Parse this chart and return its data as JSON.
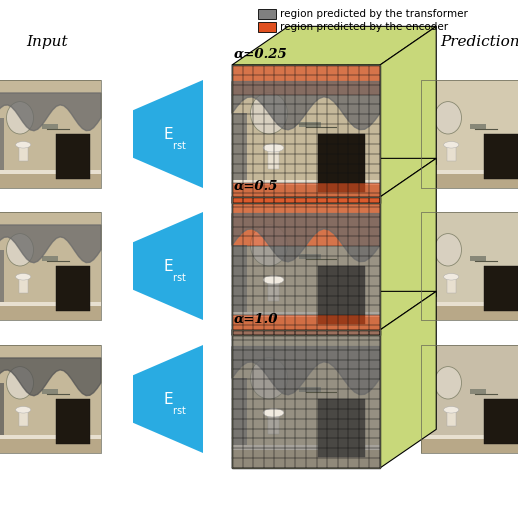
{
  "legend_items": [
    {
      "label": "region predicted by the transformer",
      "color": "#808080"
    },
    {
      "label": "region predicted by the encoder",
      "color": "#E05020"
    }
  ],
  "input_label": "Input",
  "prediction_label": "Prediction",
  "encoder_label": "E",
  "encoder_sub": "rst",
  "box_green": "#C8D87A",
  "arrow_blue": "#29ABE2",
  "transformer_color": "#808080",
  "encoder_color": "#E05020",
  "background": "#FFFFFF",
  "alphas": [
    0.25,
    0.5,
    1.0
  ],
  "alpha_labels": [
    "α=0.25",
    "α=0.5",
    "α=1.0"
  ],
  "grid_n": 14,
  "wall_color": "#C8B89A",
  "wall_light": "#DDD0B8",
  "sink_color": "#E8E0D0",
  "cabinet_color": "#2A2018",
  "mirror_color": "#D0C8B8",
  "mask_color_input": "#888888",
  "mask_color_input_alpha": 0.85,
  "pred1_wall": "#D4CAB0",
  "pred2_wall": "#D0C8B0",
  "pred3_wall": "#C0B8A0"
}
